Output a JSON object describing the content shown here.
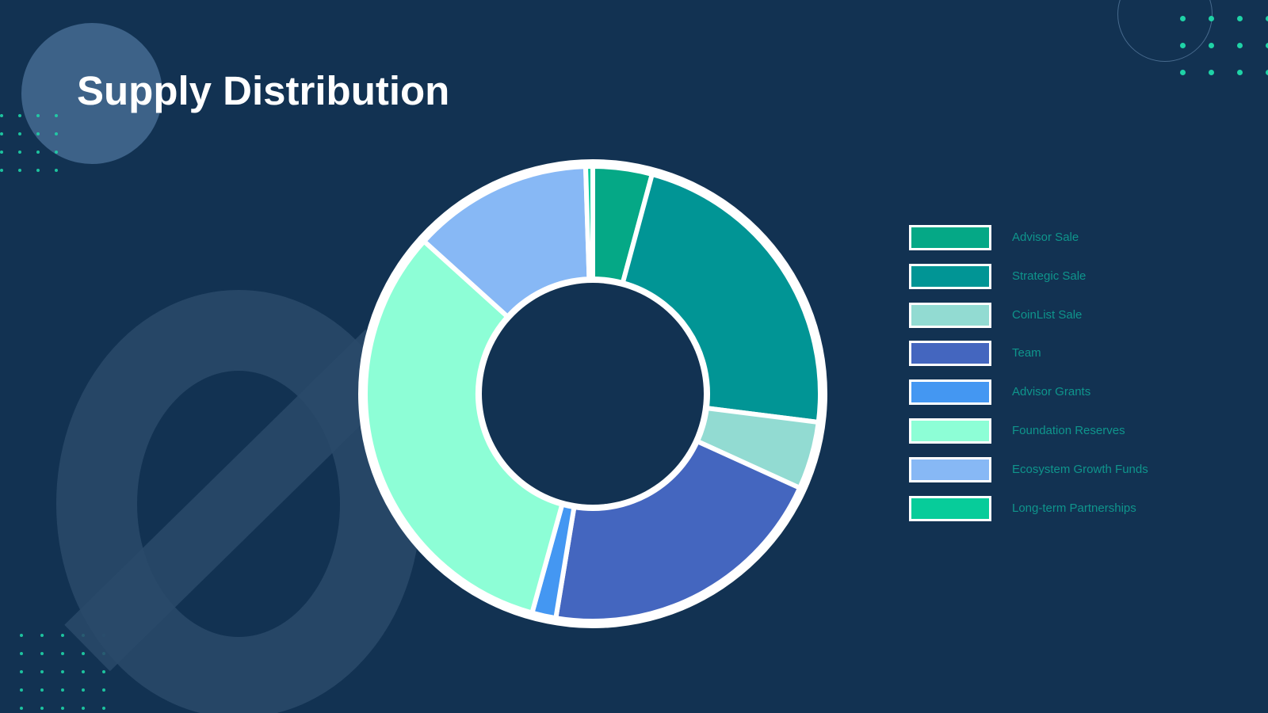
{
  "page": {
    "title": "Supply Distribution"
  },
  "colors": {
    "background": "#123252",
    "title": "#ffffff",
    "legend_label": "#0f958c",
    "accent_dots": "#1fd3a7",
    "segment_border": "#ffffff"
  },
  "chart_data": {
    "type": "pie",
    "variant": "donut",
    "title": "Supply Distribution",
    "categories": [
      "Advisor Sale",
      "Strategic Sale",
      "CoinList Sale",
      "Team",
      "Advisor Grants",
      "Foundation Reserves",
      "Ecosystem Growth Funds",
      "Long-term Partnerships"
    ],
    "values": [
      4.2,
      22.8,
      4.8,
      20.8,
      1.7,
      32.4,
      12.8,
      0.5
    ],
    "value_unit": "percent of total supply (estimated from slice angles)",
    "colors": [
      "#05a886",
      "#019595",
      "#92dbd2",
      "#4466bf",
      "#4497f2",
      "#8dfed6",
      "#87b8f5",
      "#07cc9a"
    ],
    "legend_position": "right",
    "start_angle_deg": 0,
    "direction": "clockwise"
  }
}
